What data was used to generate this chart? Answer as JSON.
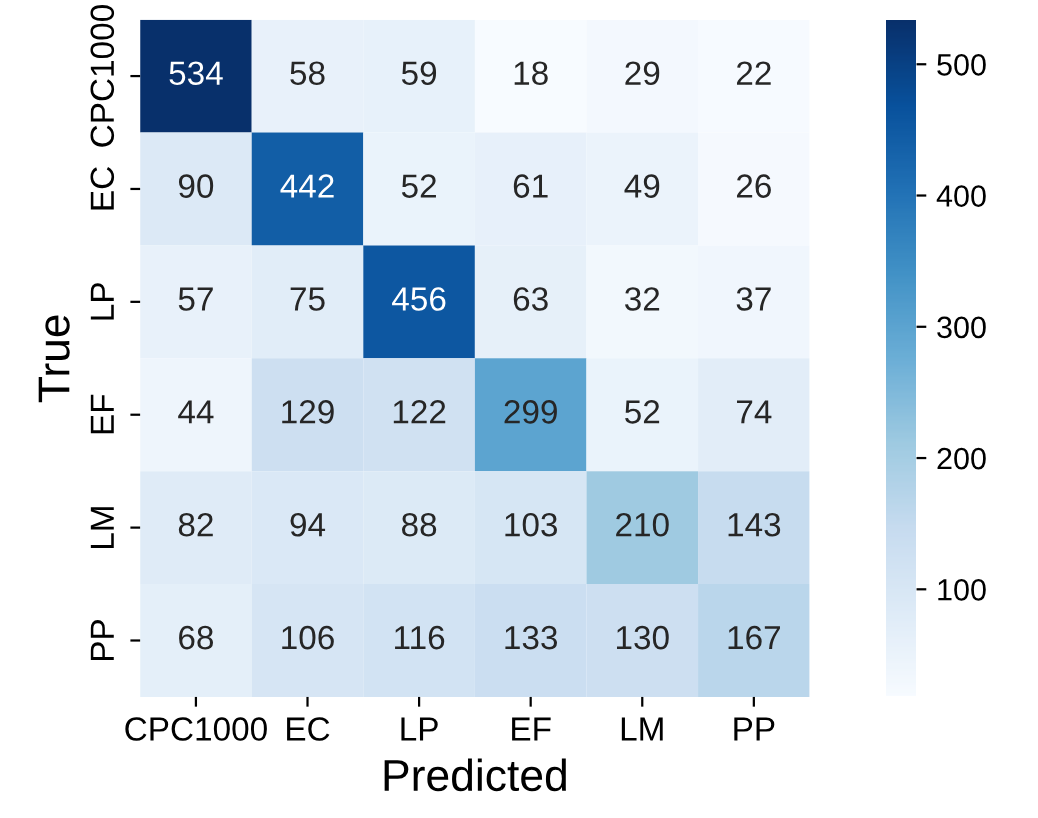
{
  "chart_data": {
    "type": "heatmap",
    "xlabel": "Predicted",
    "ylabel": "True",
    "categories": [
      "CPC1000",
      "EC",
      "LP",
      "EF",
      "LM",
      "PP"
    ],
    "y_categories": [
      "CPC1000",
      "EC",
      "LP",
      "EF",
      "LM",
      "PP"
    ],
    "cells": [
      [
        534,
        58,
        59,
        18,
        29,
        22
      ],
      [
        90,
        442,
        52,
        61,
        49,
        26
      ],
      [
        57,
        75,
        456,
        63,
        32,
        37
      ],
      [
        44,
        129,
        122,
        299,
        52,
        74
      ],
      [
        82,
        94,
        88,
        103,
        210,
        143
      ],
      [
        68,
        106,
        116,
        133,
        130,
        167
      ]
    ],
    "clim": [
      18,
      534
    ],
    "cticks": [
      100,
      200,
      300,
      400,
      500
    ],
    "data_labels": true
  }
}
